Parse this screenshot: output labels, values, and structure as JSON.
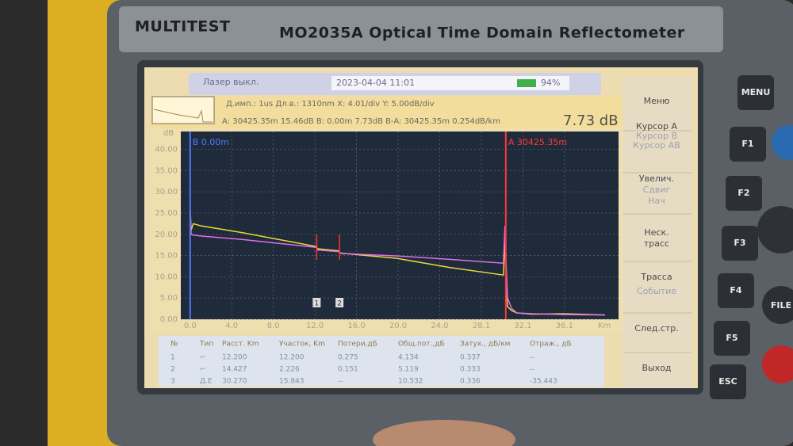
{
  "device": {
    "brand": "MULTITEST",
    "model": "MO2035A  Optical Time Domain Reflectometer"
  },
  "status": {
    "laser": "Лазер выкл.",
    "datetime": "2023-04-04 11:01",
    "battery": "94%"
  },
  "info": {
    "line1": "Д.имп.: 1us Дл.в.: 1310nm  X: 4.01/div Y: 5.00dB/div",
    "line2": "A: 30425.35m 15.46dB B: 0.00m 7.73dB B-A: 30425.35m 0.254dB/km",
    "big_value": "7.73 dB"
  },
  "chart_data": {
    "type": "line",
    "y_label": "dB",
    "x_label": "Km",
    "x": [
      0,
      0.1,
      0.3,
      1,
      5,
      10,
      12.2,
      12.25,
      14.4,
      14.45,
      20,
      25,
      30.2,
      30.35,
      30.45,
      30.6,
      31,
      31.5,
      33,
      36,
      40
    ],
    "series": [
      {
        "color": "#e8d838",
        "values": [
          26,
          21,
          22.5,
          22,
          20.4,
          18.1,
          17.1,
          16.6,
          16.1,
          15.6,
          14.3,
          12.2,
          10.4,
          19,
          8,
          3,
          2,
          1.5,
          1.2,
          1.3,
          1.0
        ]
      },
      {
        "color": "#e070e8",
        "values": [
          25,
          20,
          19.8,
          19.6,
          18.8,
          17.5,
          16.9,
          16.3,
          15.9,
          15.5,
          14.9,
          14.1,
          13.2,
          22,
          14,
          5,
          2.5,
          1.5,
          1.3,
          1.1,
          1.0
        ]
      }
    ],
    "xlim": [
      -0.9,
      41.3
    ],
    "ylim": [
      0,
      44.2
    ],
    "xticks": [
      {
        "value": 0,
        "label": "0.0"
      },
      {
        "value": 4.01,
        "label": "4.0"
      },
      {
        "value": 8.02,
        "label": "8.0"
      },
      {
        "value": 12.03,
        "label": "12.0"
      },
      {
        "value": 16.04,
        "label": "16.0"
      },
      {
        "value": 20.05,
        "label": "20.0"
      },
      {
        "value": 24.06,
        "label": "24.0"
      },
      {
        "value": 28.07,
        "label": "28.1"
      },
      {
        "value": 32.08,
        "label": "32.1"
      },
      {
        "value": 36.09,
        "label": "36.1"
      }
    ],
    "yticks": [
      {
        "value": 0,
        "label": "0.00"
      },
      {
        "value": 5,
        "label": "5.00"
      },
      {
        "value": 10,
        "label": "10.00"
      },
      {
        "value": 15,
        "label": "15.00"
      },
      {
        "value": 20,
        "label": "20.00"
      },
      {
        "value": 25,
        "label": "25.00"
      },
      {
        "value": 30,
        "label": "30.00"
      },
      {
        "value": 35,
        "label": "35.00"
      },
      {
        "value": 40,
        "label": "40.00"
      }
    ],
    "grid": true,
    "cursors": [
      {
        "x": 0,
        "label": "B 0.00m",
        "color": "#4a7aff"
      },
      {
        "x": 30.43,
        "label": "A 30425.35m",
        "color": "#ff3a3a"
      }
    ],
    "events": [
      {
        "x": 12.2,
        "label": "1"
      },
      {
        "x": 14.4,
        "label": "2"
      }
    ]
  },
  "table": {
    "header": [
      "№",
      "Тип",
      "Расст. Km",
      "Участок, Km",
      "Потери,дБ",
      "Общ.пот.,дБ",
      "Затух., дБ/км",
      "Отраж., дБ"
    ],
    "rows": [
      [
        "1",
        "⌐",
        "12.200",
        "12.200",
        "0.275",
        "4.134",
        "0.337",
        "--"
      ],
      [
        "2",
        "⌐",
        "14.427",
        "2.226",
        "0.151",
        "5.119",
        "0.333",
        "--"
      ],
      [
        "3",
        "Д.Е",
        "30.270",
        "15.843",
        "--",
        "10.532",
        "0.336",
        "-35.443"
      ]
    ]
  },
  "menu": [
    "Меню",
    "Курсор A",
    "Курсор B",
    "Курсор AB",
    "Увелич.",
    "Сдвиг",
    "Нач",
    "Неск.",
    "трасс",
    "Трасса",
    "Событие",
    "След.стр.",
    "Выход"
  ],
  "buttons": [
    "MENU",
    "F1",
    "F2",
    "F3",
    "F4",
    "F5",
    "ESC",
    "FILE"
  ]
}
